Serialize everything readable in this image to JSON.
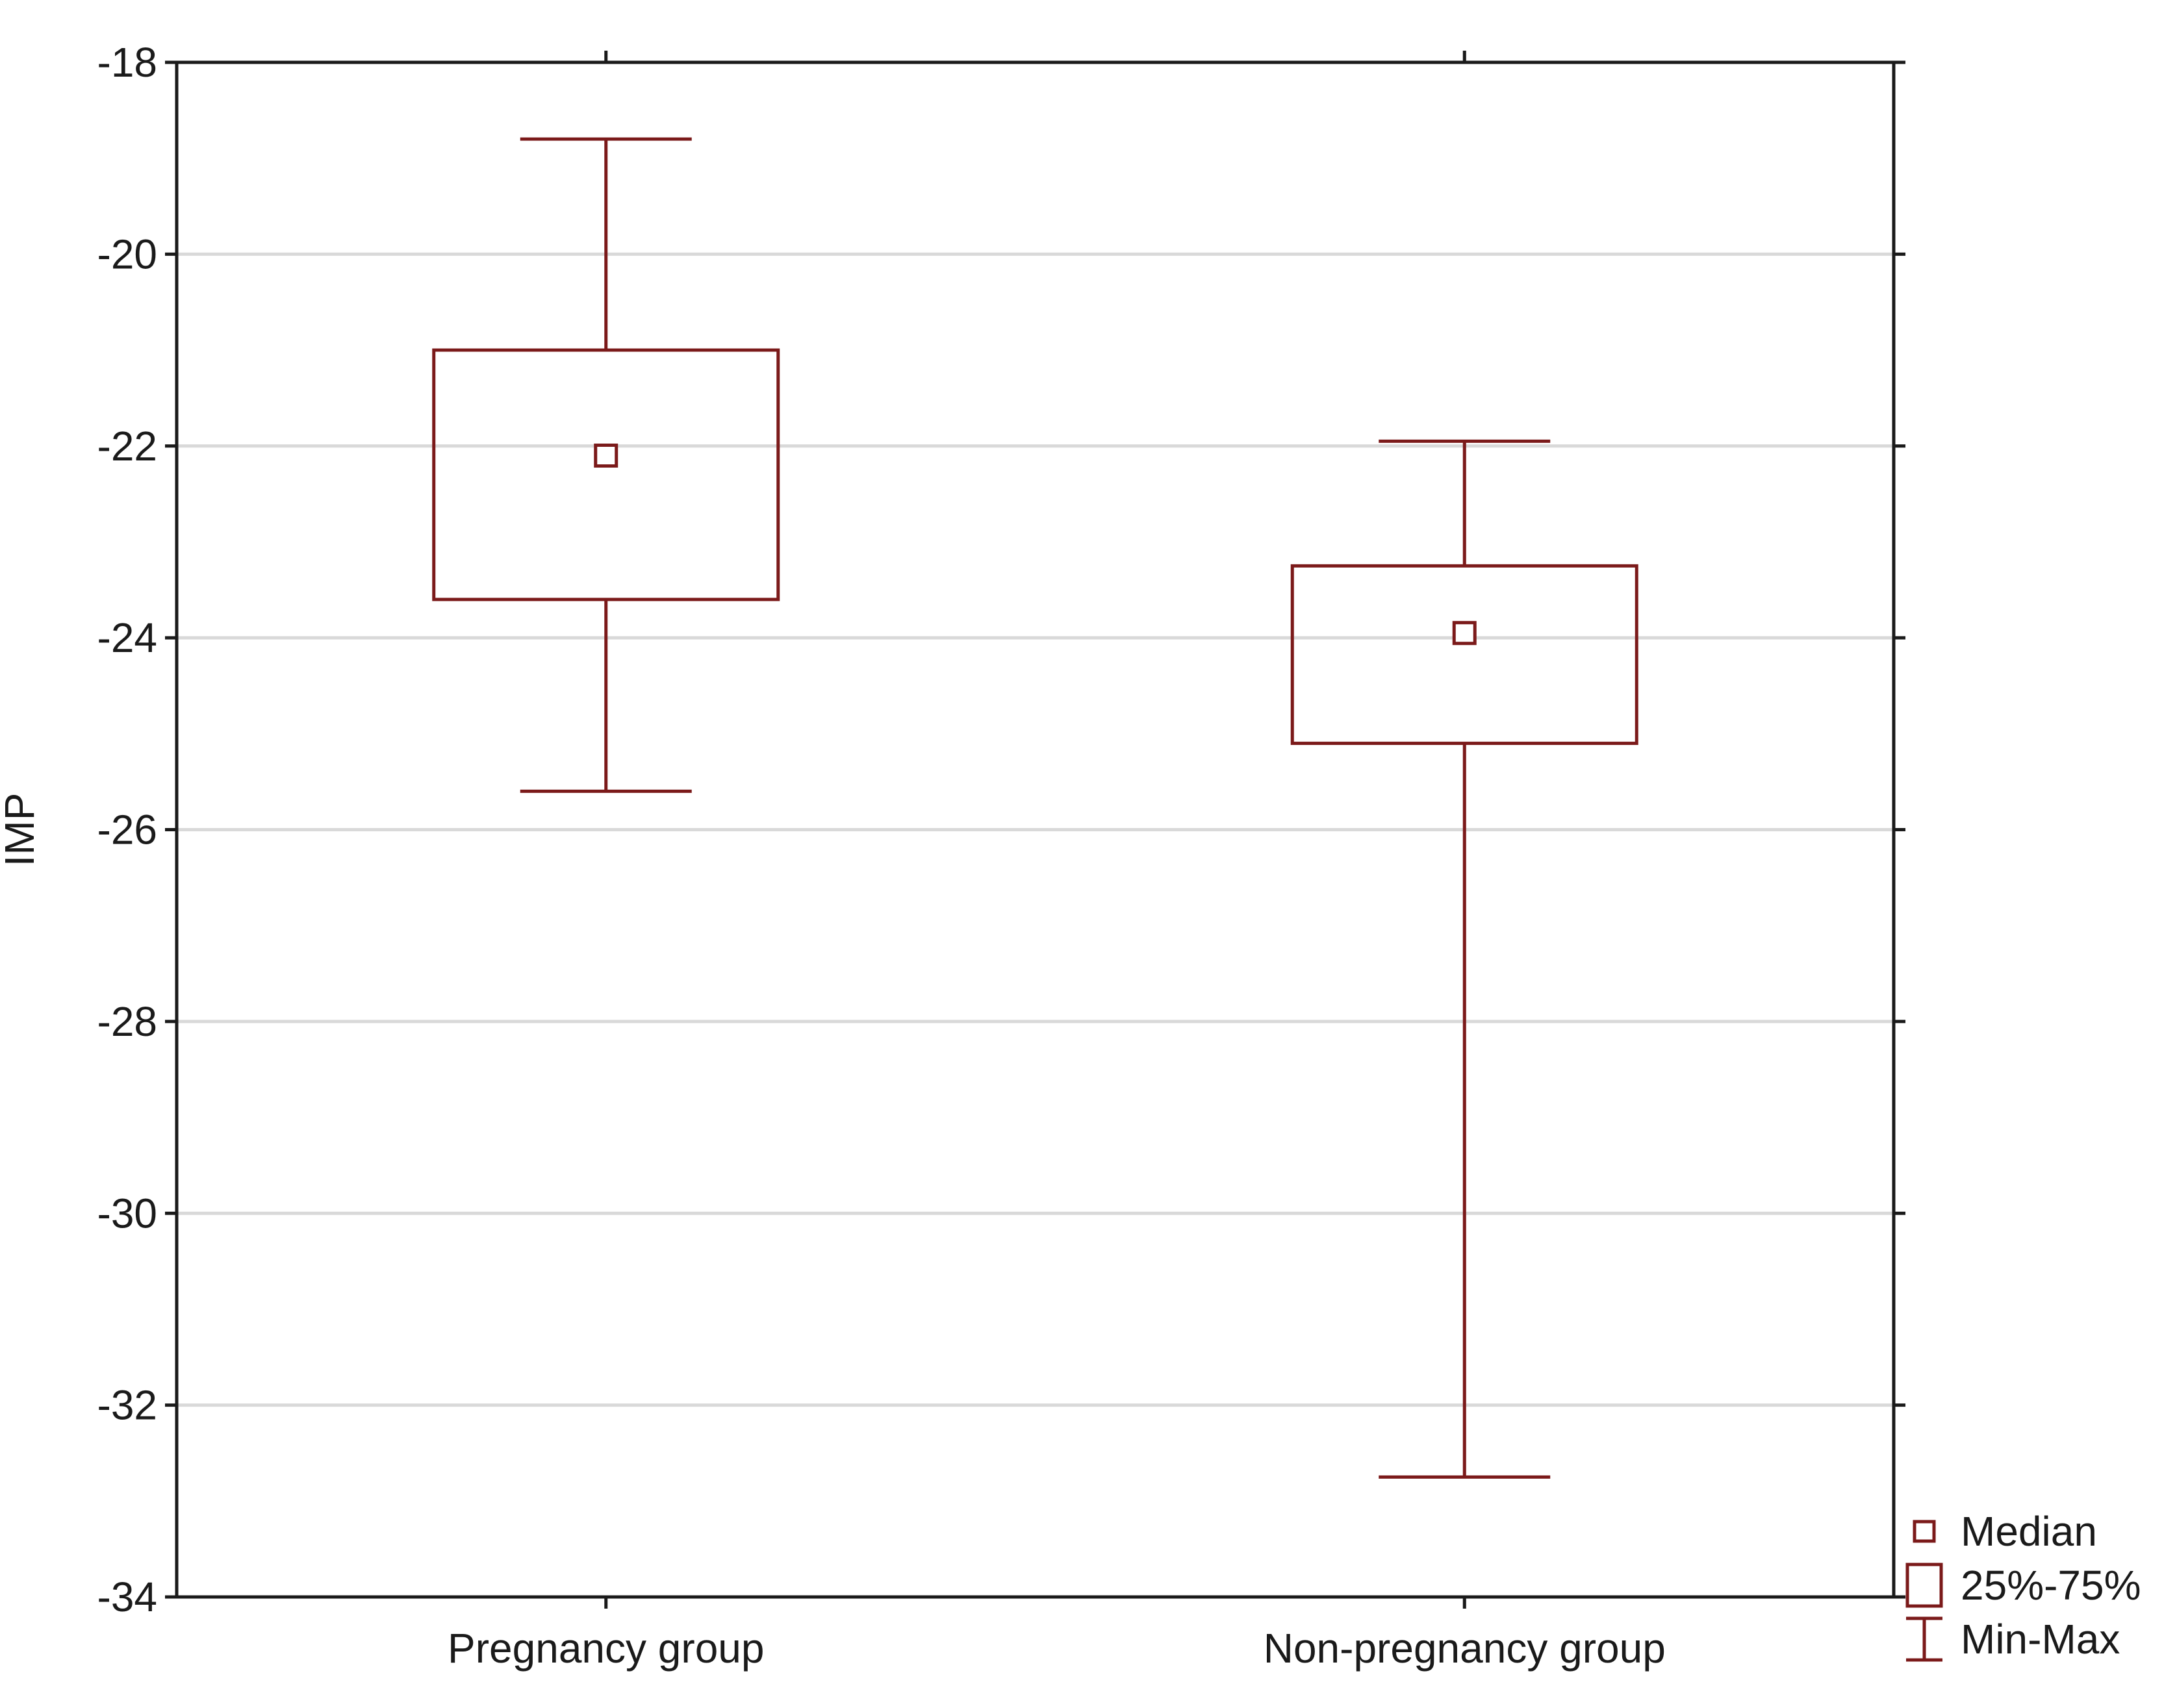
{
  "chart_data": {
    "type": "box",
    "ylabel": "IMP",
    "xlabel": "",
    "ylim": [
      -34,
      -18
    ],
    "yticks": [
      -34,
      -32,
      -30,
      -28,
      -26,
      -24,
      -22,
      -20,
      -18
    ],
    "categories": [
      "Pregnancy group",
      "Non-pregnancy group"
    ],
    "boxes": [
      {
        "category": "Pregnancy group",
        "min": -25.6,
        "q1": -23.6,
        "median": -22.1,
        "q3": -21.0,
        "max": -18.8
      },
      {
        "category": "Non-pregnancy group",
        "min": -32.75,
        "q1": -25.1,
        "median": -23.95,
        "q3": -23.25,
        "max": -21.95
      }
    ],
    "grid": true,
    "legend": {
      "position": "bottom-right-outside",
      "items": [
        {
          "symbol": "median",
          "label": "Median"
        },
        {
          "symbol": "box",
          "label": "25%-75%"
        },
        {
          "symbol": "whisker",
          "label": "Min-Max"
        }
      ]
    },
    "colors": {
      "box": "#7b1a1a",
      "grid": "#d9d9d9",
      "axis": "#1a1a1a"
    }
  }
}
